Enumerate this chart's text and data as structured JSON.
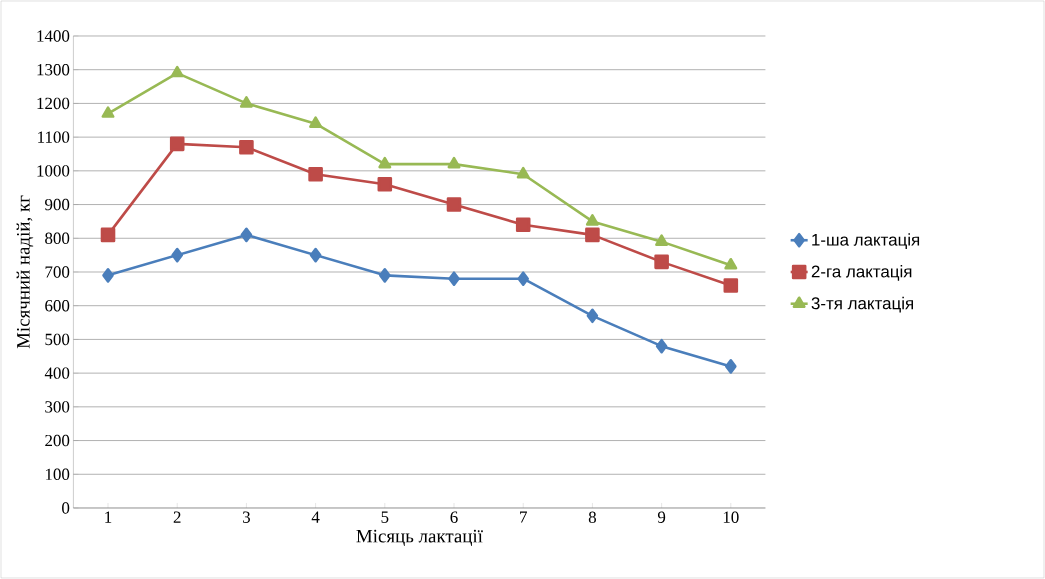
{
  "chart_data": {
    "type": "line",
    "xlabel": "Місяць лактації",
    "ylabel": "Місячний надій, кг",
    "categories": [
      "1",
      "2",
      "3",
      "4",
      "5",
      "6",
      "7",
      "8",
      "9",
      "10"
    ],
    "series": [
      {
        "name": "1-ша лактація",
        "color": "#4a7ebb",
        "marker": "diamond",
        "values": [
          690,
          750,
          810,
          750,
          690,
          680,
          680,
          570,
          480,
          420
        ]
      },
      {
        "name": "2-га лактація",
        "color": "#be4b48",
        "marker": "square",
        "values": [
          810,
          1080,
          1070,
          990,
          960,
          900,
          840,
          810,
          730,
          660
        ]
      },
      {
        "name": "3-тя лактація",
        "color": "#98b954",
        "marker": "triangle",
        "values": [
          1170,
          1290,
          1200,
          1140,
          1020,
          1020,
          990,
          850,
          790,
          720
        ]
      }
    ],
    "ylim": [
      0,
      1400
    ],
    "yticks": [
      0,
      100,
      200,
      300,
      400,
      500,
      600,
      700,
      800,
      900,
      1000,
      1100,
      1200,
      1300,
      1400
    ],
    "grid": "y",
    "legend": "right",
    "line_style": "solid"
  }
}
